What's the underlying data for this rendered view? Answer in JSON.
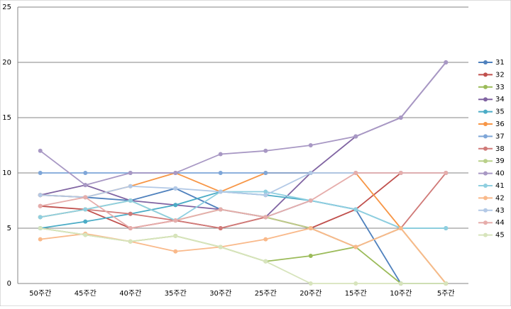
{
  "chart_data": {
    "type": "line",
    "categories": [
      "50주간",
      "45주간",
      "40주간",
      "35주간",
      "30주간",
      "25주간",
      "20주간",
      "15주간",
      "10주간",
      "5주간"
    ],
    "ylim": [
      0,
      25
    ],
    "yticks": [
      0,
      5,
      10,
      15,
      20,
      25
    ],
    "grid": true,
    "legend": "right",
    "series": [
      {
        "name": "31",
        "color": "#4f81bd",
        "values": [
          8,
          7.8,
          7.5,
          8.6,
          6.7,
          6,
          7.5,
          6.7,
          0,
          0
        ]
      },
      {
        "name": "32",
        "color": "#c0504d",
        "values": [
          7,
          6.7,
          5,
          5.7,
          5,
          6,
          5,
          6.7,
          10,
          10
        ]
      },
      {
        "name": "33",
        "color": "#9bbb59",
        "values": [
          5,
          4.4,
          3.8,
          4.3,
          3.3,
          2,
          2.5,
          3.3,
          0,
          0
        ]
      },
      {
        "name": "34",
        "color": "#8064a2",
        "values": [
          8,
          8.9,
          7.5,
          7.1,
          6.7,
          6,
          10,
          13.3,
          15,
          20
        ]
      },
      {
        "name": "35",
        "color": "#4bacc6",
        "values": [
          5,
          5.6,
          6.3,
          7.1,
          8.3,
          8,
          7.5,
          6.7,
          5,
          5
        ]
      },
      {
        "name": "36",
        "color": "#f79646",
        "values": [
          8,
          7.8,
          8.8,
          10,
          8.3,
          10,
          10,
          10,
          5,
          0
        ]
      },
      {
        "name": "37",
        "color": "#7ea6d8",
        "values": [
          10,
          10,
          10,
          10,
          10,
          10,
          10,
          10,
          10,
          10
        ]
      },
      {
        "name": "38",
        "color": "#d07a78",
        "values": [
          6,
          6.7,
          6.3,
          5.7,
          5,
          6,
          5,
          3.3,
          5,
          10
        ]
      },
      {
        "name": "39",
        "color": "#b9d08a",
        "values": [
          6,
          6.7,
          7.5,
          5.7,
          6.7,
          6,
          5,
          3.3,
          5,
          0
        ]
      },
      {
        "name": "40",
        "color": "#a898c4",
        "values": [
          12,
          8.9,
          10,
          10,
          11.7,
          12,
          12.5,
          13.3,
          15,
          20
        ]
      },
      {
        "name": "41",
        "color": "#8fcfe0",
        "values": [
          6,
          6.7,
          7.5,
          5.7,
          8.3,
          8.3,
          7.5,
          6.7,
          5,
          5
        ]
      },
      {
        "name": "42",
        "color": "#f9b98a",
        "values": [
          4,
          4.5,
          3.8,
          2.9,
          3.3,
          4,
          5,
          3.3,
          5,
          0
        ]
      },
      {
        "name": "43",
        "color": "#b3c9e6",
        "values": [
          8,
          7.8,
          8.8,
          8.6,
          8.3,
          8,
          10,
          10,
          10,
          10
        ]
      },
      {
        "name": "44",
        "color": "#e6adab",
        "values": [
          7,
          7.8,
          5,
          5.7,
          6.7,
          6,
          7.5,
          10,
          10,
          10
        ]
      },
      {
        "name": "45",
        "color": "#d7e4bc",
        "values": [
          5,
          4.4,
          3.8,
          4.3,
          3.3,
          2,
          0,
          0,
          0,
          0
        ]
      }
    ]
  }
}
